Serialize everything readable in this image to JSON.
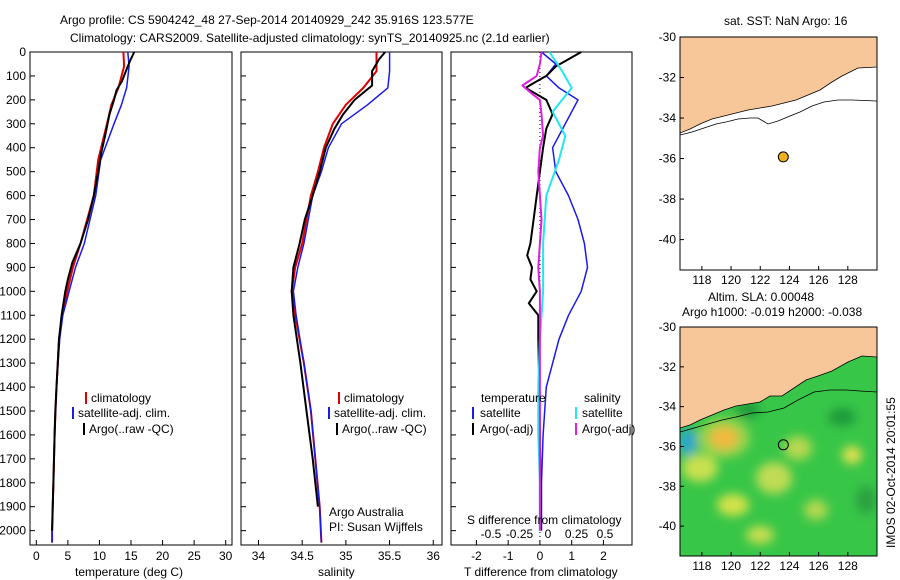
{
  "title_line1": "Argo profile: CS 5904242_48 27-Sep-2014 20140929_242 35.916S 123.577E",
  "title_line2": "Climatology: CARS2009. Satellite-adjusted climatology: synTS_20140925.nc (2.1d earlier)",
  "colors": {
    "climatology": "#e00000",
    "satellite": "#1a1aee",
    "argo": "#000000",
    "sat_salinity": "#22e6f0",
    "argo_salinity": "#e020e0",
    "land": "#f7c79a",
    "marker": "#f0b020"
  },
  "legend": {
    "climatology": "climatology",
    "satellite": "satellite-adj. clim.",
    "argo": "Argo(..raw -QC)"
  },
  "diff_legend": {
    "temperature": "temperature",
    "salinity": "salinity",
    "satellite": "satellite",
    "argo": "Argo(-adj)"
  },
  "credit": {
    "line1": "Argo Australia",
    "line2": "PI: Susan Wijffels"
  },
  "map1": {
    "title": "sat. SST: NaN  Argo: 16"
  },
  "map2": {
    "title1": "Altim. SLA: 0.00048",
    "title2": "Argo h1000: -0.019 h2000: -0.038"
  },
  "timestamp": "IMOS 02-Oct-2014 20:01:55",
  "chart_data": [
    {
      "type": "line",
      "xlabel": "temperature (deg C)",
      "xlim": [
        -1,
        31
      ],
      "xticks": [
        "0",
        "5",
        "10",
        "15",
        "20",
        "25",
        "30"
      ],
      "ylim": [
        0,
        2060
      ],
      "yticks": [
        "0",
        "100",
        "200",
        "300",
        "400",
        "500",
        "600",
        "700",
        "800",
        "900",
        "1000",
        "1100",
        "1200",
        "1300",
        "1400",
        "1500",
        "1600",
        "1700",
        "1800",
        "1900",
        "2000"
      ],
      "series": [
        {
          "name": "climatology",
          "depth": [
            0,
            60,
            150,
            220,
            300,
            450,
            600,
            800,
            900,
            1000,
            1100,
            1200,
            1400,
            1600,
            1800,
            2000,
            2050
          ],
          "values": [
            13.8,
            13.9,
            13.0,
            11.9,
            11.2,
            9.8,
            9.1,
            7.0,
            5.8,
            4.9,
            4.1,
            3.6,
            3.2,
            2.9,
            2.7,
            2.5,
            2.5
          ]
        },
        {
          "name": "satellite-adj. clim.",
          "depth": [
            0,
            60,
            150,
            220,
            300,
            450,
            600,
            800,
            900,
            1000,
            1100,
            1200,
            1400,
            1600,
            1800,
            2000,
            2050
          ],
          "values": [
            14.5,
            14.7,
            14.3,
            13.5,
            12.3,
            10.2,
            9.4,
            7.6,
            6.2,
            5.2,
            4.2,
            3.7,
            3.2,
            2.9,
            2.7,
            2.5,
            2.5
          ]
        },
        {
          "name": "Argo(..raw -QC)",
          "depth": [
            0,
            40,
            80,
            120,
            160,
            200,
            260,
            350,
            420,
            500,
            600,
            700,
            800,
            880,
            950,
            1000,
            1100,
            1200,
            1300,
            1400,
            1500,
            1600,
            1700,
            1800,
            1900,
            2000
          ],
          "values": [
            15.5,
            14.8,
            14.2,
            13.6,
            12.7,
            12.3,
            11.6,
            10.9,
            10.3,
            9.8,
            9.1,
            8.2,
            7.0,
            5.7,
            5.0,
            4.6,
            4.0,
            3.6,
            3.4,
            3.2,
            3.0,
            2.9,
            2.8,
            2.7,
            2.6,
            2.5
          ]
        }
      ]
    },
    {
      "type": "line",
      "xlabel": "salinity",
      "xlim": [
        33.8,
        36.1
      ],
      "xticks": [
        "34",
        "34.5",
        "35",
        "35.5",
        "36"
      ],
      "ylim": [
        0,
        2060
      ],
      "series": [
        {
          "name": "climatology",
          "depth": [
            0,
            80,
            150,
            220,
            300,
            400,
            500,
            600,
            700,
            800,
            900,
            1000,
            1100,
            1300,
            1500,
            1700,
            1900,
            2050
          ],
          "values": [
            35.35,
            35.35,
            35.2,
            35.0,
            34.85,
            34.75,
            34.68,
            34.6,
            34.55,
            34.5,
            34.42,
            34.38,
            34.42,
            34.52,
            34.6,
            34.65,
            34.7,
            34.72
          ]
        },
        {
          "name": "satellite-adj. clim.",
          "depth": [
            0,
            80,
            150,
            220,
            300,
            400,
            500,
            600,
            700,
            800,
            900,
            1000,
            1100,
            1300,
            1500,
            1700,
            1900,
            2050
          ],
          "values": [
            35.5,
            35.5,
            35.48,
            35.25,
            34.95,
            34.8,
            34.72,
            34.62,
            34.57,
            34.52,
            34.45,
            34.4,
            34.43,
            34.52,
            34.6,
            34.65,
            34.7,
            34.72
          ]
        },
        {
          "name": "Argo(..raw -QC)",
          "depth": [
            0,
            30,
            80,
            140,
            200,
            260,
            320,
            400,
            500,
            600,
            700,
            800,
            900,
            1000,
            1100,
            1300,
            1500,
            1700,
            1900
          ],
          "values": [
            35.45,
            35.38,
            35.3,
            35.3,
            35.1,
            34.97,
            34.87,
            34.77,
            34.7,
            34.62,
            34.53,
            34.47,
            34.4,
            34.38,
            34.4,
            34.48,
            34.55,
            34.62,
            34.68
          ]
        }
      ]
    },
    {
      "type": "line",
      "xlabel": "T difference from climatology",
      "x2label": "S difference from climatology",
      "xlim": [
        -2.8,
        2.9
      ],
      "xticks": [
        "-2",
        "-1",
        "0",
        "1",
        "2"
      ],
      "x2ticks": [
        "-0.5",
        "-0.25",
        "0",
        "0.25",
        "0.5"
      ],
      "ylim": [
        0,
        2060
      ],
      "series": [
        {
          "name": "temperature satellite",
          "depth": [
            0,
            50,
            100,
            150,
            200,
            300,
            400,
            500,
            600,
            700,
            800,
            900,
            1000,
            1100,
            1200,
            1400,
            1600,
            1800,
            2000
          ],
          "values": [
            0.05,
            0.5,
            0.2,
            0.6,
            1.2,
            0.8,
            0.4,
            0.5,
            0.9,
            1.2,
            1.4,
            1.5,
            1.3,
            0.9,
            0.6,
            0.2,
            0.1,
            0.05,
            0.05
          ]
        },
        {
          "name": "temperature Argo(-adj)",
          "depth": [
            0,
            30,
            60,
            100,
            130,
            150,
            200,
            260,
            320,
            400,
            500,
            600,
            700,
            800,
            850,
            900,
            950,
            1000,
            1050,
            1100,
            1200,
            1400,
            1600,
            1800,
            2000
          ],
          "values": [
            1.3,
            0.9,
            0.5,
            0.2,
            -0.2,
            -0.45,
            0.2,
            0.4,
            0.2,
            0.1,
            0.0,
            -0.1,
            -0.2,
            -0.3,
            -0.4,
            -0.25,
            -0.3,
            -0.1,
            -0.35,
            -0.05,
            -0.05,
            -0.02,
            0.0,
            0.02,
            0.03
          ]
        },
        {
          "name": "salinity satellite",
          "depth": [
            0,
            80,
            150,
            250,
            350,
            450,
            600,
            800,
            1000,
            1200,
            1400,
            1600,
            1800,
            2000
          ],
          "values": [
            0.3,
            0.7,
            1.0,
            0.4,
            0.8,
            0.6,
            0.2,
            0.1,
            0.1,
            0.0,
            -0.05,
            -0.05,
            0.0,
            0.0
          ]
        },
        {
          "name": "salinity Argo(-adj)",
          "depth": [
            0,
            50,
            100,
            140,
            180,
            200,
            260,
            350,
            400,
            500,
            600,
            700,
            800,
            900,
            1000,
            1200,
            1400,
            1600,
            1800,
            2000
          ],
          "values": [
            0.05,
            0.0,
            -0.1,
            -0.55,
            -0.2,
            0.0,
            0.05,
            0.1,
            0.0,
            -0.05,
            0.0,
            0.05,
            0.0,
            -0.05,
            0.0,
            0.0,
            0.0,
            0.0,
            0.0,
            0.0
          ]
        }
      ]
    },
    {
      "type": "scatter",
      "xlim": [
        116.5,
        130
      ],
      "ylim": [
        -41.5,
        -30
      ],
      "xticks": [
        "118",
        "120",
        "122",
        "124",
        "126",
        "128"
      ],
      "yticks": [
        "-30",
        "-32",
        "-34",
        "-36",
        "-38",
        "-40"
      ],
      "points": [
        {
          "x": 123.577,
          "y": -35.916,
          "label": "Argo float"
        }
      ]
    },
    {
      "type": "heatmap",
      "xlim": [
        116.5,
        130
      ],
      "ylim": [
        -41.5,
        -30
      ],
      "xticks": [
        "118",
        "120",
        "122",
        "124",
        "126",
        "128"
      ],
      "yticks": [
        "-30",
        "-32",
        "-34",
        "-36",
        "-38",
        "-40"
      ],
      "points": [
        {
          "x": 123.577,
          "y": -35.916,
          "label": "Argo float"
        }
      ]
    }
  ]
}
